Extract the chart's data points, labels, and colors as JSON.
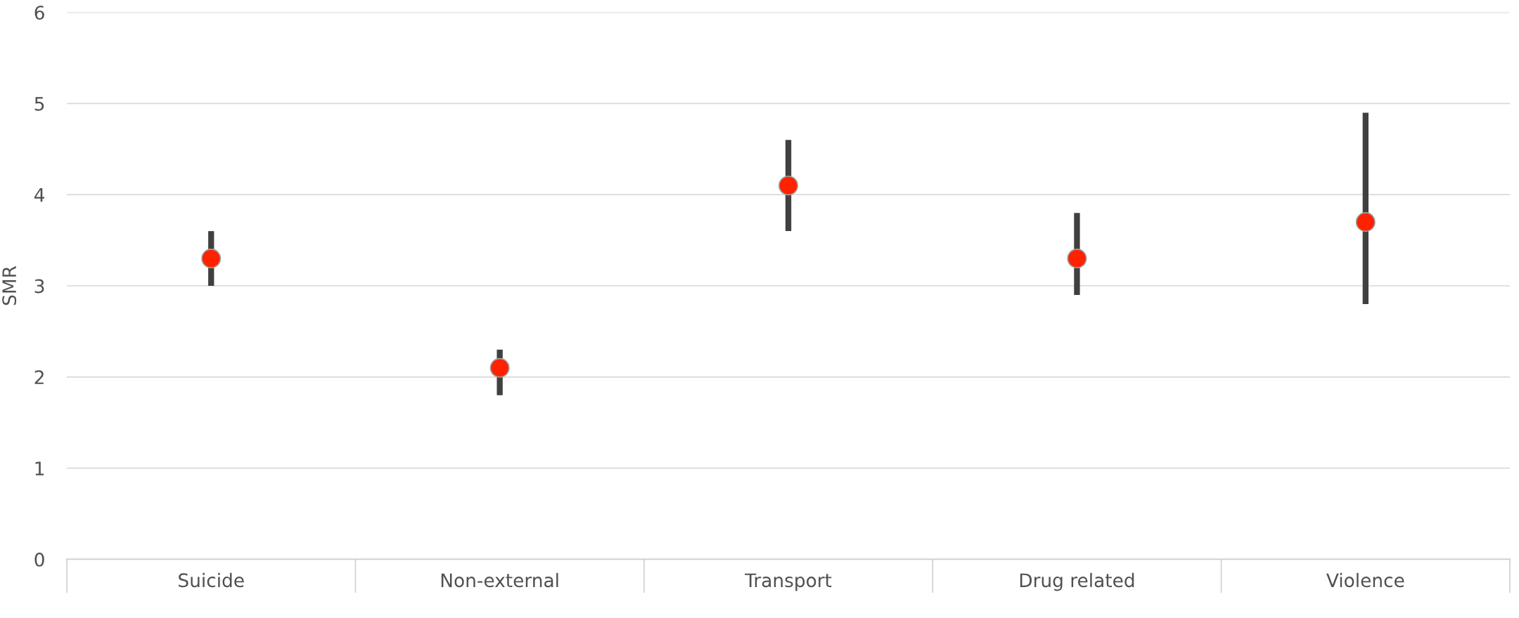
{
  "chart_data": {
    "type": "scatter",
    "ylabel": "SMR",
    "categories": [
      "Suicide",
      "Non-external",
      "Transport",
      "Drug related",
      "Violence"
    ],
    "series": [
      {
        "color": "#ff2200",
        "values": [
          3.3,
          2.1,
          4.1,
          3.3,
          3.7
        ],
        "errors": [
          [
            3.0,
            3.6
          ],
          [
            1.8,
            2.3
          ],
          [
            3.6,
            4.6
          ],
          [
            2.9,
            3.8
          ],
          [
            2.8,
            4.9
          ]
        ]
      }
    ],
    "ylim": [
      0,
      6
    ],
    "yticks": [
      0,
      1,
      2,
      3,
      4,
      5,
      6
    ],
    "grid": "y",
    "marker": "circle",
    "legend": false
  }
}
